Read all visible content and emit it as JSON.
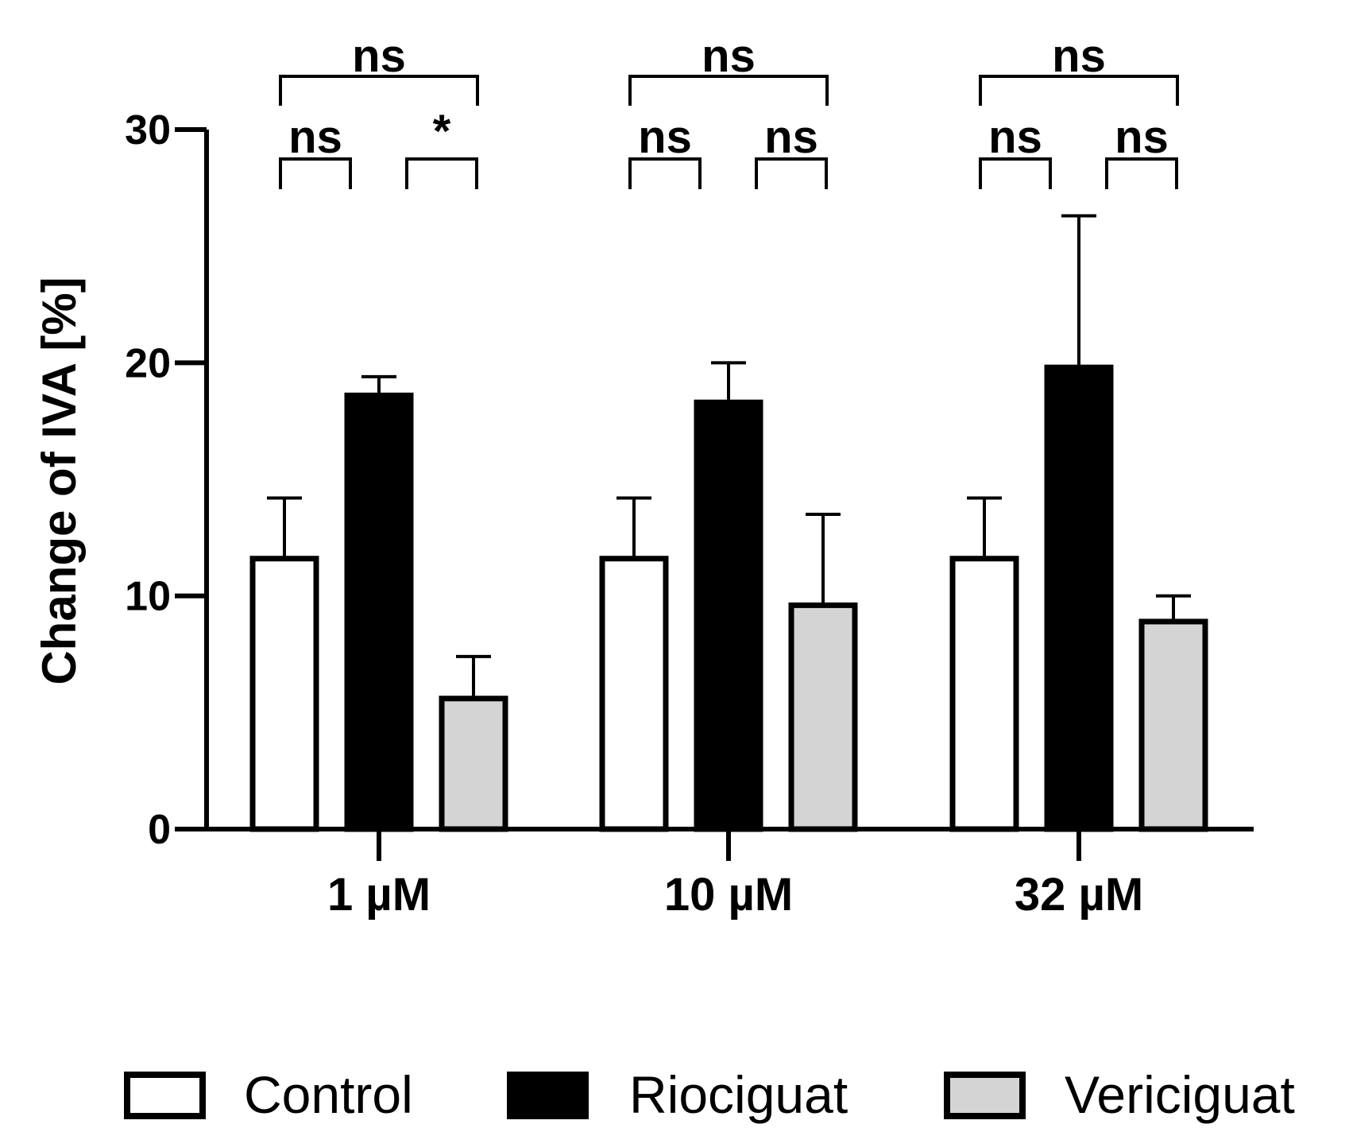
{
  "chart_data": {
    "type": "bar",
    "title": "",
    "xlabel": "",
    "ylabel": "Change of IVA [%]",
    "ylim": [
      0,
      30
    ],
    "yticks": [
      0,
      10,
      20,
      30
    ],
    "categories": [
      "1 µM",
      "10 µM",
      "32 µM"
    ],
    "series": [
      {
        "name": "Control",
        "color": "#ffffff",
        "values": [
          11.6,
          11.6,
          11.6
        ],
        "errors": [
          2.6,
          2.6,
          2.6
        ]
      },
      {
        "name": "Riociguat",
        "color": "#000000",
        "values": [
          18.6,
          18.3,
          19.8
        ],
        "errors": [
          0.8,
          1.7,
          6.5
        ]
      },
      {
        "name": "Vericiguat",
        "color": "#d4d4d4",
        "values": [
          5.6,
          9.6,
          8.9
        ],
        "errors": [
          1.8,
          3.9,
          1.1
        ]
      }
    ],
    "significance": [
      {
        "category": 0,
        "from": 0,
        "to": 2,
        "label": "ns",
        "level": "top"
      },
      {
        "category": 0,
        "from": 0,
        "to": 1,
        "label": "ns",
        "level": "low"
      },
      {
        "category": 0,
        "from": 1,
        "to": 2,
        "label": "*",
        "level": "low"
      },
      {
        "category": 1,
        "from": 0,
        "to": 2,
        "label": "ns",
        "level": "top"
      },
      {
        "category": 1,
        "from": 0,
        "to": 1,
        "label": "ns",
        "level": "low"
      },
      {
        "category": 1,
        "from": 1,
        "to": 2,
        "label": "ns",
        "level": "low"
      },
      {
        "category": 2,
        "from": 0,
        "to": 2,
        "label": "ns",
        "level": "top"
      },
      {
        "category": 2,
        "from": 0,
        "to": 1,
        "label": "ns",
        "level": "low"
      },
      {
        "category": 2,
        "from": 1,
        "to": 2,
        "label": "ns",
        "level": "low"
      }
    ],
    "legend": {
      "position": "bottom",
      "entries": [
        "Control",
        "Riociguat",
        "Vericiguat"
      ]
    }
  }
}
